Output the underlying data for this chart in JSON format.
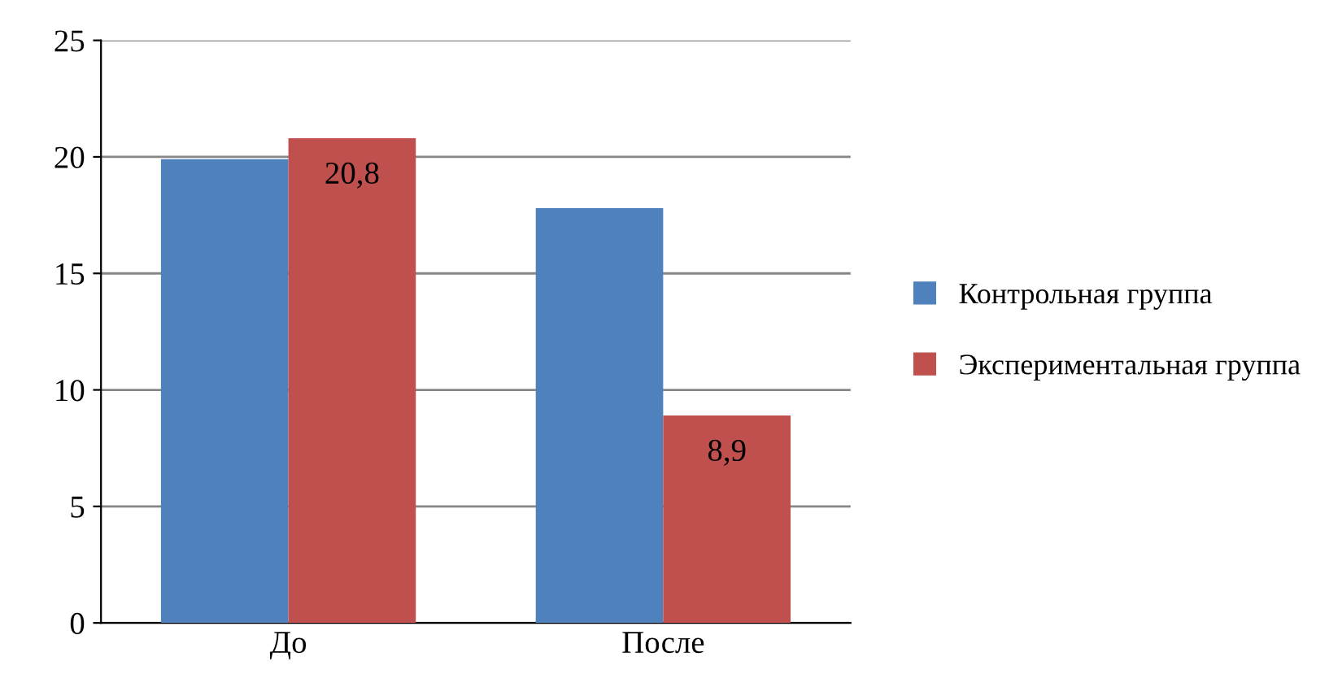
{
  "chart_data": {
    "type": "bar",
    "categories": [
      "До",
      "После"
    ],
    "series": [
      {
        "name": "Контрольная группа",
        "color": "#4f81bd",
        "values": [
          19.9,
          17.8
        ]
      },
      {
        "name": "Экспериментальная группа",
        "color": "#c0504d",
        "values": [
          20.8,
          8.9
        ],
        "value_labels": [
          "20,8",
          "8,9"
        ]
      }
    ],
    "ylim": [
      0,
      25
    ],
    "yticks": [
      0,
      5,
      10,
      15,
      20,
      25
    ],
    "grid": "y",
    "legend": "right"
  }
}
